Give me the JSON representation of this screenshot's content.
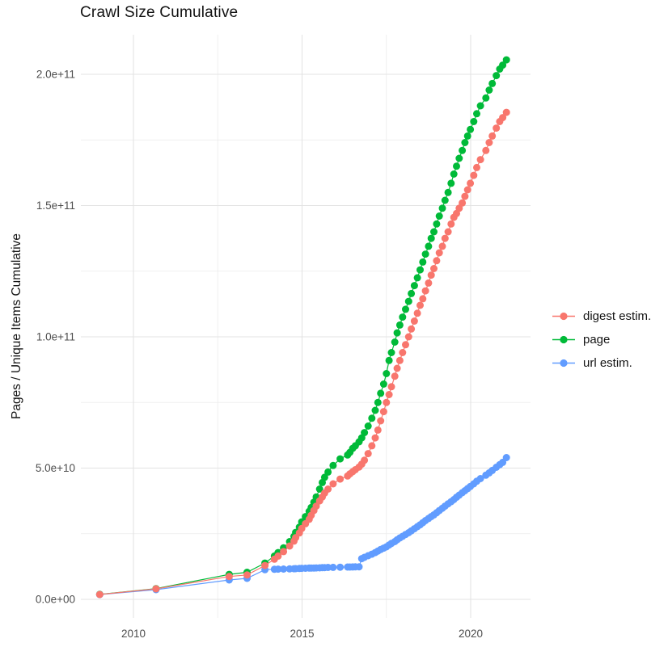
{
  "title": "Crawl Size Cumulative",
  "axes": {
    "y_label": "Pages / Unique Items Cumulative",
    "y_tick_labels": [
      "0.0e+00",
      "5.0e+10",
      "1.0e+11",
      "1.5e+11",
      "2.0e+11"
    ],
    "y_tick_values_billion": [
      0,
      50,
      100,
      150,
      200
    ],
    "y_minor_values_billion": [
      25,
      75,
      125,
      175
    ],
    "x_tick_labels": [
      "2010",
      "2015",
      "2020"
    ],
    "x_tick_values": [
      2010,
      2015,
      2020
    ],
    "x_minor_values": [
      2012.5,
      2017.5
    ]
  },
  "legend": {
    "items": [
      {
        "label": "digest estim.",
        "color": "#F8766D"
      },
      {
        "label": "page",
        "color": "#00BA38"
      },
      {
        "label": "url estim.",
        "color": "#619CFF"
      }
    ]
  },
  "chart_data": {
    "type": "scatter",
    "title": "Crawl Size Cumulative",
    "xlabel": "",
    "ylabel": "Pages / Unique Items Cumulative",
    "x_unit": "year (decimal)",
    "y_unit": "cumulative count, billions (1e9)",
    "xlim": [
      2008.4,
      2021.8
    ],
    "ylim_billion": [
      0,
      215
    ],
    "grid": true,
    "legend_position": "right",
    "draw_order": [
      1,
      2,
      0
    ],
    "x": [
      2009.0,
      2010.67,
      2012.84,
      2013.37,
      2013.9,
      2014.18,
      2014.29,
      2014.45,
      2014.63,
      2014.76,
      2014.81,
      2014.92,
      2014.99,
      2015.1,
      2015.21,
      2015.27,
      2015.35,
      2015.42,
      2015.52,
      2015.6,
      2015.67,
      2015.77,
      2015.92,
      2016.13,
      2016.35,
      2016.42,
      2016.5,
      2016.58,
      2016.69,
      2016.77,
      2016.85,
      2016.96,
      2017.07,
      2017.17,
      2017.25,
      2017.33,
      2017.42,
      2017.5,
      2017.58,
      2017.65,
      2017.75,
      2017.82,
      2017.9,
      2017.98,
      2018.07,
      2018.16,
      2018.24,
      2018.33,
      2018.42,
      2018.5,
      2018.58,
      2018.66,
      2018.75,
      2018.83,
      2018.91,
      2018.99,
      2019.07,
      2019.16,
      2019.24,
      2019.33,
      2019.42,
      2019.5,
      2019.58,
      2019.66,
      2019.75,
      2019.83,
      2019.91,
      2019.99,
      2020.09,
      2020.18,
      2020.29,
      2020.45,
      2020.55,
      2020.64,
      2020.76,
      2020.86,
      2020.95,
      2021.06
    ],
    "series": [
      {
        "name": "digest estim.",
        "color": "#F8766D",
        "values_billion": [
          1.85,
          4.0,
          8.7,
          9.3,
          12.9,
          15.3,
          16.5,
          18.2,
          20.3,
          22.2,
          23.5,
          25.3,
          27.0,
          28.8,
          30.5,
          32.0,
          33.8,
          35.5,
          37.5,
          39.0,
          40.5,
          42.0,
          44.0,
          45.8,
          47.0,
          47.8,
          48.6,
          49.4,
          50.4,
          51.5,
          53.0,
          55.5,
          58.5,
          61.5,
          64.5,
          68.0,
          71.5,
          75.0,
          78.0,
          81.0,
          85.0,
          88.0,
          91.0,
          94.0,
          97.0,
          100.0,
          103.0,
          106.0,
          109.0,
          112.0,
          114.5,
          117.5,
          120.5,
          123.5,
          126.0,
          129.0,
          132.0,
          134.5,
          137.5,
          140.0,
          143.0,
          145.5,
          147.0,
          149.0,
          151.0,
          153.5,
          156.0,
          158.5,
          161.5,
          164.5,
          167.5,
          171.0,
          174.0,
          176.5,
          179.5,
          182.0,
          183.5,
          185.5
        ]
      },
      {
        "name": "page",
        "color": "#00BA38",
        "values_billion": [
          1.9,
          4.1,
          9.5,
          10.3,
          13.8,
          16.5,
          17.8,
          19.6,
          22.0,
          24.0,
          25.5,
          27.5,
          29.5,
          31.5,
          33.5,
          35.0,
          37.0,
          39.0,
          42.0,
          44.5,
          46.5,
          48.5,
          51.0,
          53.5,
          55.0,
          56.0,
          57.5,
          58.5,
          60.0,
          61.5,
          63.5,
          66.0,
          69.0,
          72.0,
          75.0,
          78.5,
          82.0,
          86.0,
          91.0,
          94.0,
          98.0,
          101.5,
          104.5,
          107.5,
          110.5,
          113.5,
          116.5,
          119.5,
          122.5,
          125.5,
          128.5,
          131.5,
          134.5,
          137.5,
          140.0,
          143.0,
          146.0,
          149.0,
          152.0,
          155.0,
          158.5,
          162.0,
          165.0,
          168.0,
          171.0,
          174.0,
          176.5,
          179.0,
          182.0,
          185.0,
          188.0,
          191.0,
          194.0,
          196.5,
          199.5,
          202.0,
          203.5,
          205.5
        ]
      },
      {
        "name": "url estim.",
        "color": "#619CFF",
        "values_billion": [
          1.8,
          3.7,
          7.4,
          8.0,
          11.3,
          11.45,
          11.5,
          11.55,
          11.6,
          11.65,
          11.7,
          11.75,
          11.8,
          11.85,
          11.9,
          11.92,
          11.95,
          11.97,
          12.0,
          12.05,
          12.1,
          12.15,
          12.2,
          12.25,
          12.3,
          12.32,
          12.35,
          12.37,
          12.4,
          15.5,
          16.0,
          16.6,
          17.2,
          17.8,
          18.4,
          19.0,
          19.5,
          20.0,
          20.7,
          21.3,
          22.0,
          22.7,
          23.4,
          24.0,
          24.7,
          25.4,
          26.1,
          26.9,
          27.7,
          28.4,
          29.2,
          30.0,
          30.8,
          31.5,
          32.2,
          33.0,
          33.8,
          34.7,
          35.5,
          36.4,
          37.2,
          38.0,
          38.9,
          39.7,
          40.6,
          41.4,
          42.2,
          43.0,
          44.0,
          45.0,
          46.0,
          47.3,
          48.2,
          49.1,
          50.3,
          51.3,
          52.2,
          54.0
        ]
      }
    ]
  }
}
